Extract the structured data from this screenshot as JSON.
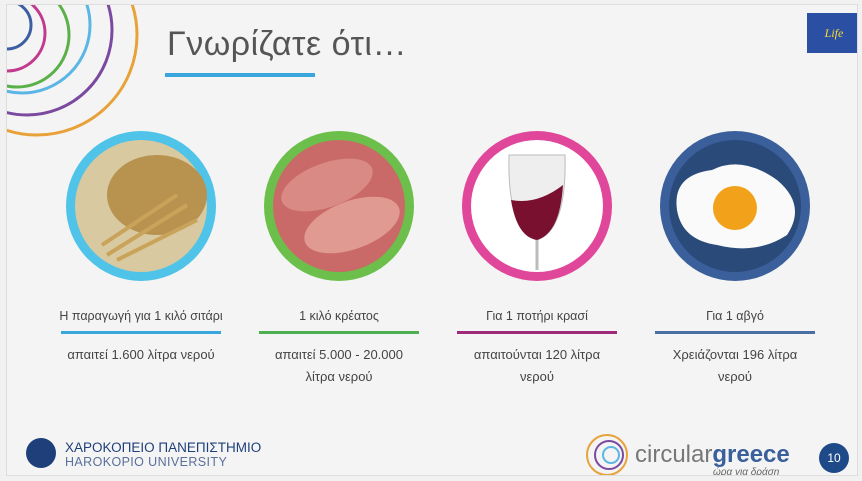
{
  "header": {
    "title": "Γνωρίζατε ότι…",
    "logo": "Life"
  },
  "items": [
    {
      "label": "Η παραγωγή για 1 κιλό σιτάρι",
      "description": "απαιτεί 1.600 λίτρα νερού"
    },
    {
      "label": "1 κιλό κρέατος",
      "description": "απαιτεί 5.000 - 20.000 λίτρα νερού"
    },
    {
      "label": "Για 1 ποτήρι κρασί",
      "description": "απαιτούνται 120 λίτρα νερού"
    },
    {
      "label": "Για 1 αβγό",
      "description": "Χρειάζονται 196 λίτρα νερού"
    }
  ],
  "footer": {
    "university_gr": "ΧΑΡΟΚΟΠΕΙΟ ΠΑΝΕΠΙΣΤΗΜΙΟ",
    "university_en": "HAROKOPIO UNIVERSITY",
    "brand_a": "circular",
    "brand_b": "greece",
    "tagline": "ώρα για δράση",
    "page": 10
  }
}
